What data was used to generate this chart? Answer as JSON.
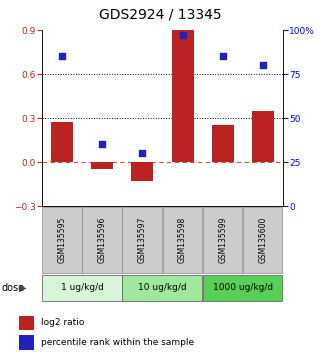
{
  "title": "GDS2924 / 13345",
  "samples": [
    "GSM135595",
    "GSM135596",
    "GSM135597",
    "GSM135598",
    "GSM135599",
    "GSM135600"
  ],
  "log2_ratio": [
    0.27,
    -0.05,
    -0.13,
    0.9,
    0.25,
    0.35
  ],
  "percentile_rank": [
    85,
    35,
    30,
    97,
    85,
    80
  ],
  "ylim_left": [
    -0.3,
    0.9
  ],
  "ylim_right": [
    0,
    100
  ],
  "yticks_left": [
    -0.3,
    0.0,
    0.3,
    0.6,
    0.9
  ],
  "yticks_right": [
    0,
    25,
    50,
    75,
    100
  ],
  "bar_color": "#bb2222",
  "dot_color": "#2222bb",
  "hline_y_dotted": [
    0.3,
    0.6
  ],
  "dose_groups": [
    {
      "label": "1 ug/kg/d",
      "start": 0,
      "end": 2,
      "color": "#d8f5d8"
    },
    {
      "label": "10 ug/kg/d",
      "start": 2,
      "end": 4,
      "color": "#a0e8a0"
    },
    {
      "label": "1000 ug/kg/d",
      "start": 4,
      "end": 6,
      "color": "#58d058"
    }
  ],
  "legend_bar_label": "log2 ratio",
  "legend_dot_label": "percentile rank within the sample",
  "dose_label": "dose",
  "title_fontsize": 10,
  "tick_fontsize": 6.5,
  "sample_fontsize": 5.5,
  "dose_fontsize": 6.5,
  "legend_fontsize": 6.5,
  "bar_width": 0.55
}
